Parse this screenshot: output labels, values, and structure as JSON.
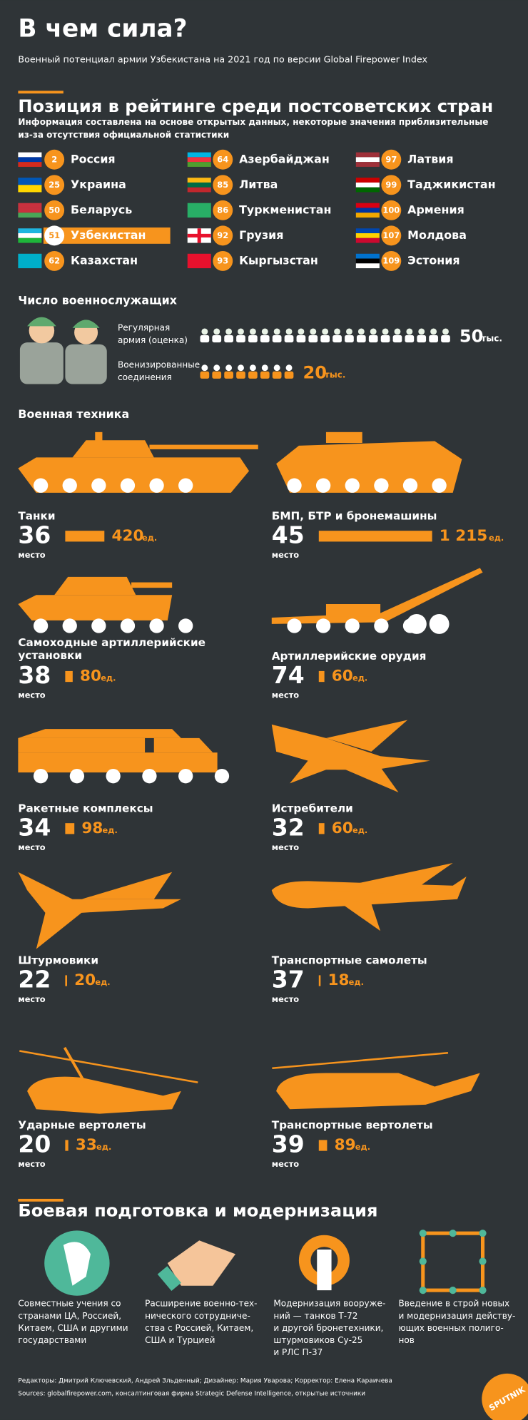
{
  "header": {
    "title": "В чем сила?",
    "subtitle": "Военный потенциал армии Узбекистана на 2021 год по версии Global Firepower Index"
  },
  "ranking": {
    "title": "Позиция в рейтинге среди постсоветских стран",
    "note": [
      "Информация составлена на основе открытых данных, некоторые значения приблизительные",
      "из-за отсутствия официальной статистики"
    ],
    "countries": [
      {
        "rank": 2,
        "name": "Россия"
      },
      {
        "rank": 25,
        "name": "Украина"
      },
      {
        "rank": 50,
        "name": "Беларусь"
      },
      {
        "rank": 51,
        "name": "Узбекистан",
        "highlighted": true
      },
      {
        "rank": 62,
        "name": "Казахстан"
      },
      {
        "rank": 64,
        "name": "Азербайджан"
      },
      {
        "rank": 85,
        "name": "Литва"
      },
      {
        "rank": 86,
        "name": "Туркменистан"
      },
      {
        "rank": 92,
        "name": "Грузия"
      },
      {
        "rank": 93,
        "name": "Кыргызстан"
      },
      {
        "rank": 97,
        "name": "Латвия"
      },
      {
        "rank": 99,
        "name": "Таджикистан"
      },
      {
        "rank": 100,
        "name": "Армения"
      },
      {
        "rank": 107,
        "name": "Молдова"
      },
      {
        "rank": 109,
        "name": "Эстония"
      }
    ]
  },
  "personnel": {
    "title": "Число военнослужащих",
    "unit": "тыс.",
    "rows": [
      {
        "label": [
          "Регулярная",
          "армия (оценка)"
        ],
        "value": 50
      },
      {
        "label": [
          "Военизированные",
          "соединения"
        ],
        "value": 20
      }
    ]
  },
  "equipment": {
    "title": "Военная техника",
    "rank_label": "место",
    "unit": "ед.",
    "items": [
      {
        "name": [
          "Танки"
        ],
        "rank": 36,
        "count": 420
      },
      {
        "name": [
          "БМП, БТР и бронемашины"
        ],
        "rank": 45,
        "count": 1215,
        "count_label": "1 215"
      },
      {
        "name": [
          "Самоходные артиллерийские",
          "установки"
        ],
        "rank": 38,
        "count": 80
      },
      {
        "name": [
          "Артиллерийские орудия"
        ],
        "rank": 74,
        "count": 60
      },
      {
        "name": [
          "Ракетные комплексы"
        ],
        "rank": 34,
        "count": 98
      },
      {
        "name": [
          "Истребители"
        ],
        "rank": 32,
        "count": 60
      },
      {
        "name": [
          "Штурмовики"
        ],
        "rank": 22,
        "count": 20
      },
      {
        "name": [
          "Транспортные самолеты"
        ],
        "rank": 37,
        "count": 18
      },
      {
        "name": [
          "Ударные вертолеты"
        ],
        "rank": 20,
        "count": 33
      },
      {
        "name": [
          "Транспортные вертолеты"
        ],
        "rank": 39,
        "count": 89
      }
    ]
  },
  "training": {
    "title": "Боевая подготовка и модернизация",
    "items": [
      [
        "Совместные учения со",
        "странами ЦА, Россией,",
        "Китаем, США и другими",
        "государствами"
      ],
      [
        "Расширение военно-тех-",
        "нического сотрудниче-",
        "ства с Россией, Китаем,",
        "США и Турцией"
      ],
      [
        "Модернизация вооруже-",
        "ний — танков Т-72",
        "и другой бронетехники,",
        "штурмовиков Су-25",
        "и РЛС П-37"
      ],
      [
        "Введение в строй новых",
        "и модернизация действу-",
        "ющих военных полиго-",
        "нов"
      ]
    ]
  },
  "footer": {
    "credits": "Редакторы: Дмитрий Ключевский, Андрей Зльденный; Дизайнер: Мария Уварова; Корректор: Елена Караичева",
    "sources": "Sources: globalfirepower.com, консалтинговая фирма Strategic Defense Intelligence, открытые источники"
  },
  "logo": "SPUTNIK"
}
